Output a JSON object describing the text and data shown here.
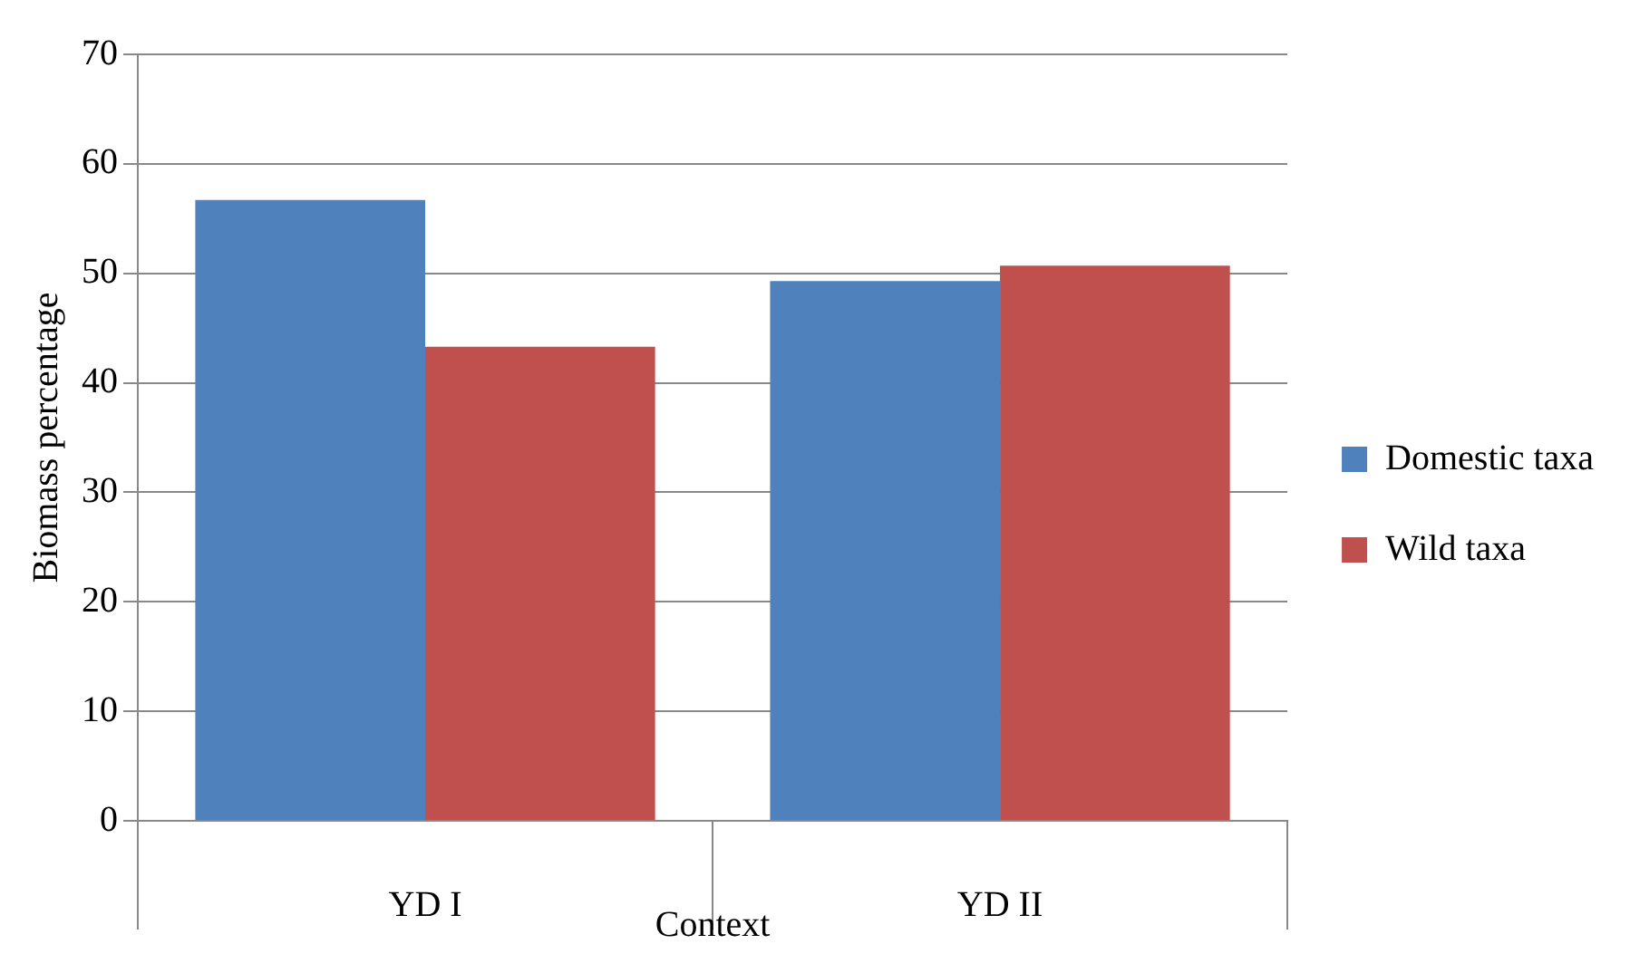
{
  "chart_data": {
    "type": "bar",
    "xlabel": "Context",
    "ylabel": "Biomass percentage",
    "categories": [
      "YD I",
      "YD II"
    ],
    "series": [
      {
        "name": "Domestic taxa",
        "color": "#4f81bd",
        "values": [
          56.7,
          49.3
        ]
      },
      {
        "name": "Wild taxa",
        "color": "#c0504d",
        "values": [
          43.3,
          50.7
        ]
      }
    ],
    "ylim": [
      0,
      70
    ],
    "yticks": [
      0,
      10,
      20,
      30,
      40,
      50,
      60,
      70
    ],
    "grid": "y",
    "legend": "right"
  }
}
